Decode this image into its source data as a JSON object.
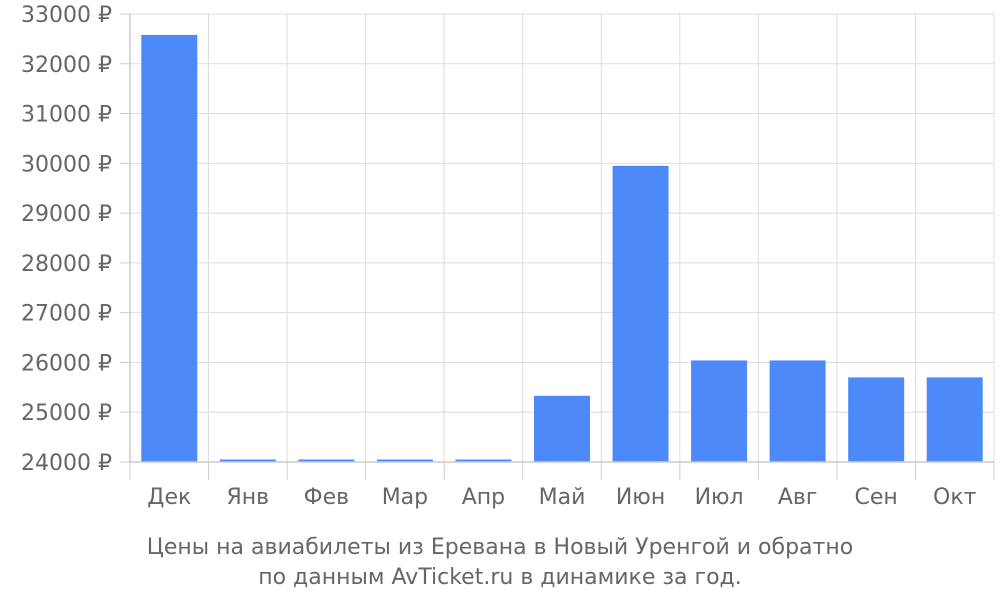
{
  "caption": {
    "line1": "Цены на авиабилеты из Еревана в Новый Уренгой и обратно",
    "line2": "по данным AvTicket.ru в динамике за год."
  },
  "chart_data": {
    "type": "bar",
    "categories": [
      "Дек",
      "Янв",
      "Фев",
      "Мар",
      "Апр",
      "Май",
      "Июн",
      "Июл",
      "Авг",
      "Сен",
      "Окт"
    ],
    "values": [
      32580,
      24050,
      24050,
      24050,
      24050,
      25330,
      29950,
      26040,
      26040,
      25700,
      25700
    ],
    "ylim": [
      24000,
      33000
    ],
    "yticks": [
      24000,
      25000,
      26000,
      27000,
      28000,
      29000,
      30000,
      31000,
      32000,
      33000
    ],
    "ytick_suffix": " ₽",
    "bar_color": "#4d89f9",
    "grid": true,
    "legend": "none"
  }
}
